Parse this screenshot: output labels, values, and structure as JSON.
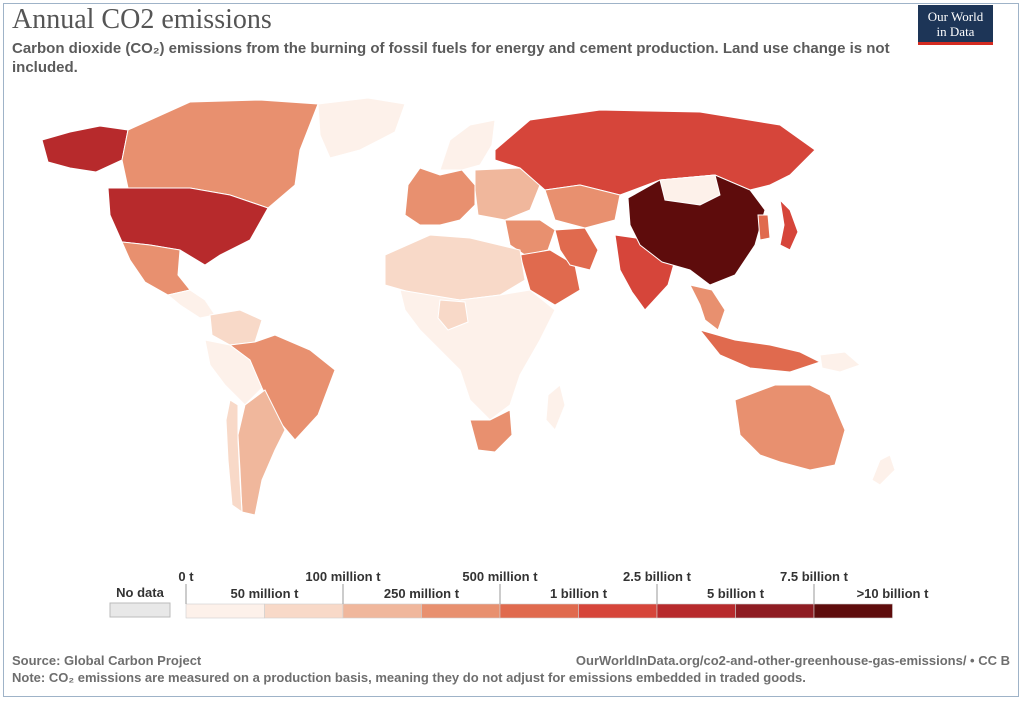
{
  "header": {
    "title": "Annual CO2 emissions",
    "subtitle": "Carbon dioxide (CO₂) emissions from the burning of fossil fuels for energy and cement production. Land use change is not included."
  },
  "logo": {
    "line1": "Our World",
    "line2": "in Data",
    "bg": "#1d3557",
    "accent": "#d42b21"
  },
  "legend": {
    "no_data_label": "No data",
    "no_data_color": "#e8e8e8",
    "upper_labels": [
      "0 t",
      "100 million t",
      "500 million t",
      "2.5 billion t",
      "7.5 billion t"
    ],
    "lower_labels": [
      "50 million t",
      "250 million t",
      "1 billion t",
      "5 billion t",
      ">10 billion t"
    ],
    "bins": [
      {
        "range": "0 t – 50 million t",
        "color": "#fdf1ea"
      },
      {
        "range": "50 – 100 million t",
        "color": "#f8d9c8"
      },
      {
        "range": "100 – 250 million t",
        "color": "#f0b79c"
      },
      {
        "range": "250 – 500 million t",
        "color": "#e8906f"
      },
      {
        "range": "500 million t – 1 billion t",
        "color": "#e06a4e"
      },
      {
        "range": "1 – 2.5 billion t",
        "color": "#d6453a"
      },
      {
        "range": "2.5 – 5 billion t",
        "color": "#b72a2c"
      },
      {
        "range": "5 – 7.5 billion t",
        "color": "#8e1c22"
      },
      {
        "range": "7.5 – >10 billion t",
        "color": "#5e0c0c"
      }
    ]
  },
  "regions": [
    {
      "name": "Alaska (USA)",
      "color": "#b72a2c"
    },
    {
      "name": "Canada",
      "color": "#e8906f"
    },
    {
      "name": "United States",
      "color": "#b72a2c"
    },
    {
      "name": "Greenland",
      "color": "#fdf1ea"
    },
    {
      "name": "Mexico",
      "color": "#e8906f"
    },
    {
      "name": "Central America",
      "color": "#fdf1ea"
    },
    {
      "name": "Colombia/Venezuela",
      "color": "#f8d9c8"
    },
    {
      "name": "Peru/Bolivia",
      "color": "#fdf1ea"
    },
    {
      "name": "Brazil",
      "color": "#e8906f"
    },
    {
      "name": "Argentina",
      "color": "#f0b79c"
    },
    {
      "name": "Chile",
      "color": "#f8d9c8"
    },
    {
      "name": "Western Europe",
      "color": "#e8906f"
    },
    {
      "name": "Scandinavia",
      "color": "#fdf1ea"
    },
    {
      "name": "Eastern Europe",
      "color": "#f0b79c"
    },
    {
      "name": "Russia",
      "color": "#d6453a"
    },
    {
      "name": "Kazakhstan",
      "color": "#e8906f"
    },
    {
      "name": "Middle East",
      "color": "#e8906f"
    },
    {
      "name": "Saudi Arabia",
      "color": "#e06a4e"
    },
    {
      "name": "Iran",
      "color": "#e06a4e"
    },
    {
      "name": "India",
      "color": "#d6453a"
    },
    {
      "name": "China",
      "color": "#5e0c0c"
    },
    {
      "name": "Mongolia",
      "color": "#fdf1ea"
    },
    {
      "name": "Japan",
      "color": "#d6453a"
    },
    {
      "name": "Korea",
      "color": "#e06a4e"
    },
    {
      "name": "Southeast Asia",
      "color": "#e8906f"
    },
    {
      "name": "Indonesia",
      "color": "#e06a4e"
    },
    {
      "name": "North Africa",
      "color": "#f8d9c8"
    },
    {
      "name": "Sub-Saharan Africa",
      "color": "#fdf1ea"
    },
    {
      "name": "Nigeria",
      "color": "#f8d9c8"
    },
    {
      "name": "South Africa",
      "color": "#e8906f"
    },
    {
      "name": "Madagascar",
      "color": "#fdf1ea"
    },
    {
      "name": "Australia",
      "color": "#e8906f"
    },
    {
      "name": "New Zealand",
      "color": "#fdf1ea"
    },
    {
      "name": "Papua New Guinea",
      "color": "#fdf1ea"
    }
  ],
  "footer": {
    "source": "Source: Global Carbon Project",
    "url": "OurWorldInData.org/co2-and-other-greenhouse-gas-emissions/ • CC B",
    "note": "Note: CO₂ emissions are measured on a production basis, meaning they do not adjust for emissions embedded in traded goods."
  }
}
